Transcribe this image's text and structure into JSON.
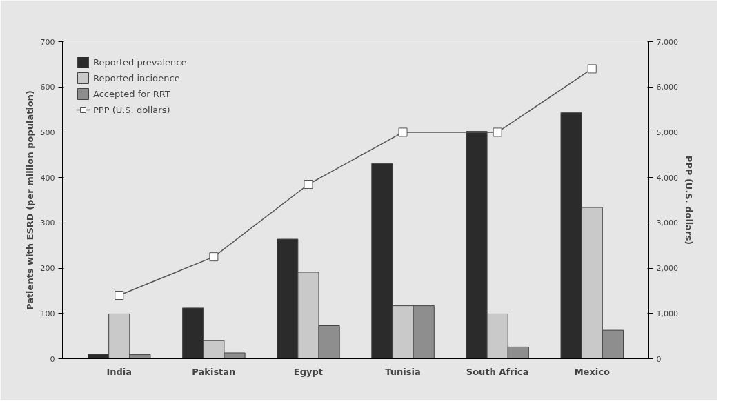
{
  "chart_data": {
    "type": "bar",
    "categories": [
      "India",
      "Pakistan",
      "Egypt",
      "Tunisia",
      "South Africa",
      "Mexico"
    ],
    "ylabel": "Patients with ESRD (per million population)",
    "y2label": "PPP (U.S. dollars)",
    "ylim": [
      0,
      700
    ],
    "yticks": [
      0,
      100,
      200,
      300,
      400,
      500,
      600,
      700
    ],
    "y2lim": [
      0,
      7000
    ],
    "y2ticks": [
      0,
      {
        "value": 1000,
        "label": "1,000"
      },
      {
        "value": 2000,
        "label": "2,000"
      },
      {
        "value": 3000,
        "label": "3,000"
      },
      {
        "value": 4000,
        "label": "4,000"
      },
      {
        "value": 5000,
        "label": "5,000"
      },
      {
        "value": 6000,
        "label": "6,000"
      },
      {
        "value": 7000,
        "label": "7,000"
      }
    ],
    "series": [
      {
        "name": "Reported prevalence",
        "color": "#2b2b2b",
        "values": [
          10,
          112,
          264,
          431,
          502,
          543
        ]
      },
      {
        "name": "Reported incidence",
        "color": "#c9c9c9",
        "values": [
          99,
          40,
          191,
          117,
          99,
          334
        ]
      },
      {
        "name": "Accepted for RRT",
        "color": "#8e8e8e",
        "values": [
          9,
          13,
          73,
          117,
          26,
          63
        ]
      },
      {
        "name": "PPP (U.S. dollars)",
        "type": "line",
        "axis": "y2",
        "marker": "square",
        "color": "#555555",
        "values": [
          1400,
          2250,
          3850,
          5000,
          5000,
          6400
        ]
      }
    ],
    "legend": "top left"
  }
}
